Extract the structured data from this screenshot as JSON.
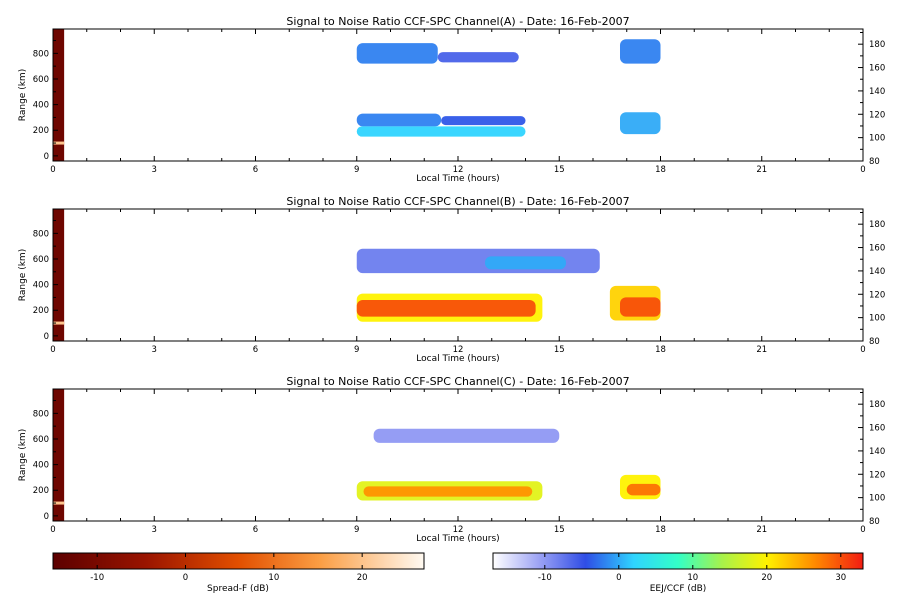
{
  "figure": {
    "colorbar_spreadf": {
      "label": "Spread-F (dB)",
      "ticks": [
        "-10",
        "0",
        "10",
        "20"
      ],
      "range": [
        -15,
        27
      ]
    },
    "colorbar_eej": {
      "label": "EEJ/CCF (dB)",
      "ticks": [
        "-10",
        "0",
        "10",
        "20",
        "30"
      ],
      "range": [
        -17,
        33
      ]
    }
  },
  "chart_data": [
    {
      "type": "heatmap",
      "title": "Signal to Noise Ratio CCF-SPC Channel(A) - Date: 16-Feb-2007",
      "xlabel": "Local Time (hours)",
      "ylabel": "Range (km)",
      "xlim": [
        0,
        24
      ],
      "x_ticks": [
        "0",
        "3",
        "6",
        "9",
        "12",
        "15",
        "18",
        "21",
        "0"
      ],
      "ylim": [
        -40,
        990
      ],
      "y_ticks": [
        "0",
        "200",
        "400",
        "600",
        "800"
      ],
      "y_right_ticks": [
        "80",
        "100",
        "120",
        "140",
        "160",
        "180"
      ],
      "y_right_lim": [
        80,
        193
      ],
      "spreadf_strip": {
        "x": [
          0,
          0.33
        ],
        "value_db": -12,
        "highlight_range_km": 100,
        "highlight_db": 20
      },
      "patches": [
        {
          "x": [
            9.0,
            11.4
          ],
          "y": [
            720,
            880
          ],
          "snr_db": -2
        },
        {
          "x": [
            11.4,
            13.8
          ],
          "y": [
            730,
            810
          ],
          "snr_db": -6
        },
        {
          "x": [
            9.0,
            11.5
          ],
          "y": [
            230,
            330
          ],
          "snr_db": -2
        },
        {
          "x": [
            11.5,
            14.0
          ],
          "y": [
            240,
            310
          ],
          "snr_db": -4
        },
        {
          "x": [
            9.0,
            14.0
          ],
          "y": [
            150,
            230
          ],
          "snr_db": 2
        },
        {
          "x": [
            16.8,
            18.0
          ],
          "y": [
            720,
            910
          ],
          "snr_db": -2
        },
        {
          "x": [
            16.8,
            18.0
          ],
          "y": [
            170,
            340
          ],
          "snr_db": 0
        }
      ]
    },
    {
      "type": "heatmap",
      "title": "Signal to Noise Ratio CCF-SPC Channel(B) - Date: 16-Feb-2007",
      "xlabel": "Local Time (hours)",
      "ylabel": "Range (km)",
      "xlim": [
        0,
        24
      ],
      "x_ticks": [
        "0",
        "3",
        "6",
        "9",
        "12",
        "15",
        "18",
        "21",
        "0"
      ],
      "ylim": [
        -40,
        990
      ],
      "y_ticks": [
        "0",
        "200",
        "400",
        "600",
        "800"
      ],
      "y_right_ticks": [
        "80",
        "100",
        "120",
        "140",
        "160",
        "180"
      ],
      "y_right_lim": [
        80,
        193
      ],
      "spreadf_strip": {
        "x": [
          0,
          0.33
        ],
        "value_db": -12,
        "highlight_range_km": 100,
        "highlight_db": 20
      },
      "patches": [
        {
          "x": [
            9.0,
            16.2
          ],
          "y": [
            490,
            680
          ],
          "snr_db": -8
        },
        {
          "x": [
            12.8,
            15.2
          ],
          "y": [
            520,
            620
          ],
          "snr_db": 0
        },
        {
          "x": [
            9.0,
            14.5
          ],
          "y": [
            110,
            330
          ],
          "snr_db": 20
        },
        {
          "x": [
            9.0,
            14.3
          ],
          "y": [
            150,
            280
          ],
          "snr_db": 30
        },
        {
          "x": [
            16.5,
            18.0
          ],
          "y": [
            120,
            390
          ],
          "snr_db": 22
        },
        {
          "x": [
            16.8,
            18.0
          ],
          "y": [
            150,
            300
          ],
          "snr_db": 30
        }
      ]
    },
    {
      "type": "heatmap",
      "title": "Signal to Noise Ratio CCF-SPC Channel(C) - Date: 16-Feb-2007",
      "xlabel": "Local Time (hours)",
      "ylabel": "Range (km)",
      "xlim": [
        0,
        24
      ],
      "x_ticks": [
        "0",
        "3",
        "6",
        "9",
        "12",
        "15",
        "18",
        "21",
        "0"
      ],
      "ylim": [
        -40,
        990
      ],
      "y_ticks": [
        "0",
        "200",
        "400",
        "600",
        "800"
      ],
      "y_right_ticks": [
        "80",
        "100",
        "120",
        "140",
        "160",
        "180"
      ],
      "y_right_lim": [
        80,
        193
      ],
      "spreadf_strip": {
        "x": [
          0,
          0.33
        ],
        "value_db": -12,
        "highlight_range_km": 100,
        "highlight_db": 20
      },
      "patches": [
        {
          "x": [
            9.5,
            15.0
          ],
          "y": [
            570,
            680
          ],
          "snr_db": -10
        },
        {
          "x": [
            9.0,
            14.5
          ],
          "y": [
            120,
            270
          ],
          "snr_db": 18
        },
        {
          "x": [
            9.2,
            14.2
          ],
          "y": [
            150,
            230
          ],
          "snr_db": 26
        },
        {
          "x": [
            16.8,
            18.0
          ],
          "y": [
            130,
            320
          ],
          "snr_db": 20
        },
        {
          "x": [
            17.0,
            18.0
          ],
          "y": [
            160,
            250
          ],
          "snr_db": 28
        }
      ]
    }
  ]
}
